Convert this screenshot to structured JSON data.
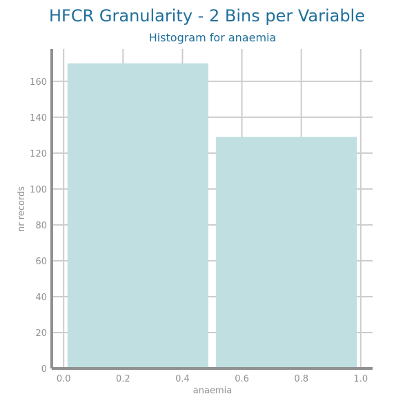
{
  "colors": {
    "title": "#1f6f9b",
    "bar": "#bfdfe1",
    "grid": "#cccccc",
    "axis": "#909090",
    "tick_text": "#909090"
  },
  "chart_data": {
    "type": "bar",
    "title": "HFCR Granularity - 2 Bins per Variable",
    "subtitle": "Histogram for anaemia",
    "xlabel": "anaemia",
    "ylabel": "nr records",
    "xlim": [
      -0.04,
      1.04
    ],
    "ylim": [
      0,
      178
    ],
    "x_ticks": [
      0.0,
      0.2,
      0.4,
      0.6,
      0.8,
      1.0
    ],
    "x_tick_labels": [
      "0.0",
      "0.2",
      "0.4",
      "0.6",
      "0.8",
      "1.0"
    ],
    "y_ticks": [
      0,
      20,
      40,
      60,
      80,
      100,
      120,
      140,
      160
    ],
    "y_tick_labels": [
      "0",
      "20",
      "40",
      "60",
      "80",
      "100",
      "120",
      "140",
      "160"
    ],
    "grid": true,
    "bins": [
      {
        "start": 0.0,
        "end": 0.5,
        "value": 170
      },
      {
        "start": 0.5,
        "end": 1.0,
        "value": 129
      }
    ]
  }
}
